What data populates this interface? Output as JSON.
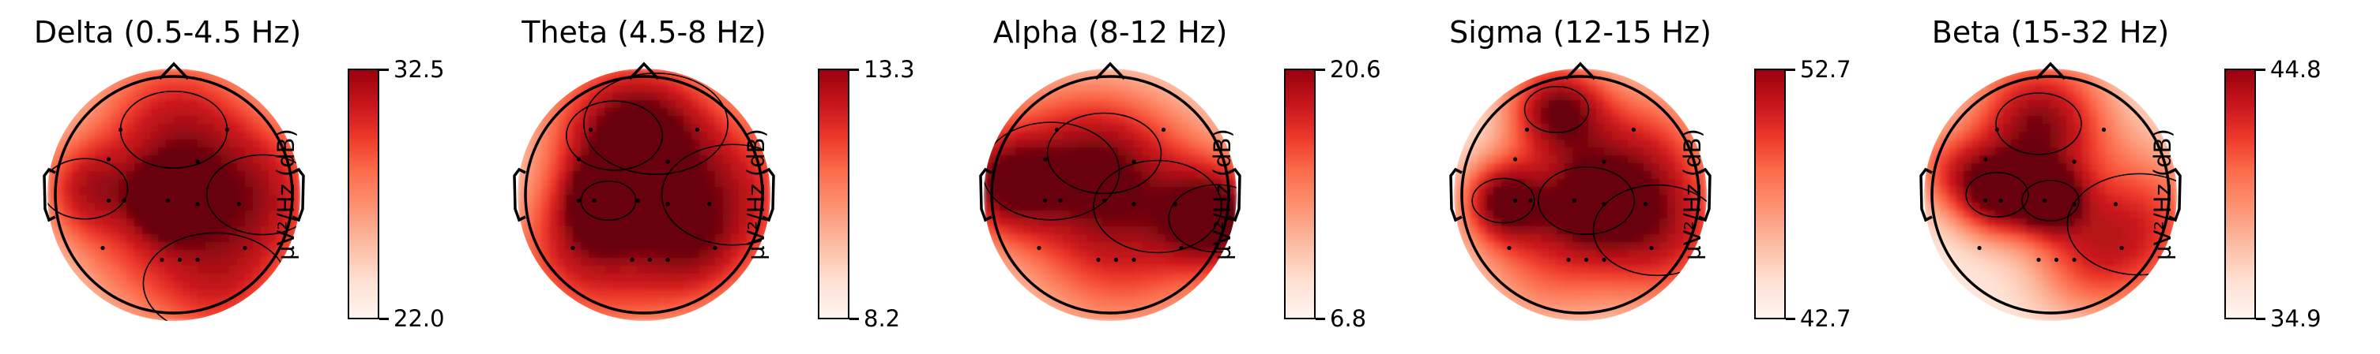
{
  "chart_data": {
    "type": "heatmap",
    "figure": "topographic band power maps",
    "colormap": "Reds",
    "panels": [
      {
        "title": "Delta (0.5-4.5 Hz)",
        "cbar_label": "µV²/Hz (dB)",
        "vmin": 22.0,
        "vmax": 32.5,
        "vmin_label": "22.0",
        "vmax_label": "32.5"
      },
      {
        "title": "Theta (4.5-8 Hz)",
        "cbar_label": "µV²/Hz (dB)",
        "vmin": 8.2,
        "vmax": 13.3,
        "vmin_label": "8.2",
        "vmax_label": "13.3"
      },
      {
        "title": "Alpha (8-12 Hz)",
        "cbar_label": "µV²/Hz (dB)",
        "vmin": 6.8,
        "vmax": 20.6,
        "vmin_label": "6.8",
        "vmax_label": "20.6"
      },
      {
        "title": "Sigma (12-15 Hz)",
        "cbar_label": "µV²/Hz (dB)",
        "vmin": 42.7,
        "vmax": 52.7,
        "vmin_label": "42.7",
        "vmax_label": "52.7"
      },
      {
        "title": "Beta (15-32 Hz)",
        "cbar_label": "µV²/Hz (dB)",
        "vmin": 34.9,
        "vmax": 44.8,
        "vmin_label": "34.9",
        "vmax_label": "44.8"
      }
    ]
  }
}
